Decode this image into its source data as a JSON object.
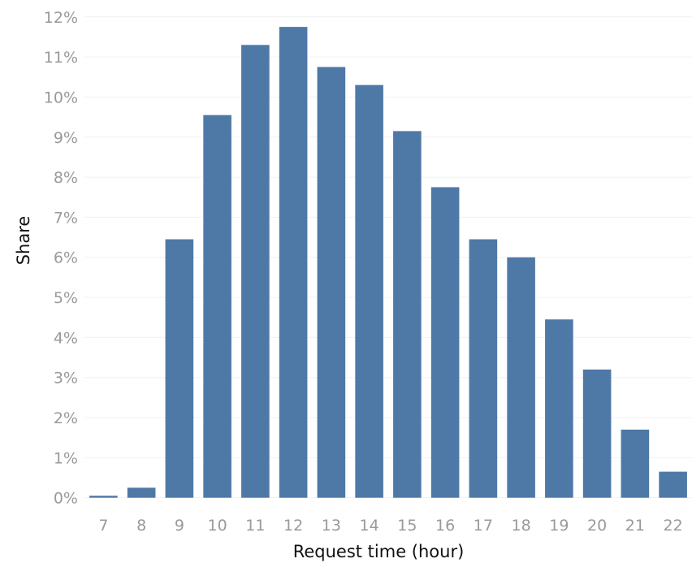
{
  "chart_data": {
    "type": "bar",
    "categories": [
      "7",
      "8",
      "9",
      "10",
      "11",
      "12",
      "13",
      "14",
      "15",
      "16",
      "17",
      "18",
      "19",
      "20",
      "21",
      "22"
    ],
    "values": [
      0.05,
      0.25,
      6.45,
      9.55,
      11.3,
      11.75,
      10.75,
      10.3,
      9.15,
      7.75,
      6.45,
      6.0,
      4.45,
      3.2,
      1.7,
      0.65
    ],
    "xlabel": "Request time (hour)",
    "ylabel": "Share",
    "ylim": [
      -0.25,
      12.3
    ],
    "yticks": [
      0,
      1,
      2,
      3,
      4,
      5,
      6,
      7,
      8,
      9,
      10,
      11,
      12
    ],
    "ytick_suffix": "%",
    "grid": true,
    "bar_color": "#4e79a7"
  }
}
